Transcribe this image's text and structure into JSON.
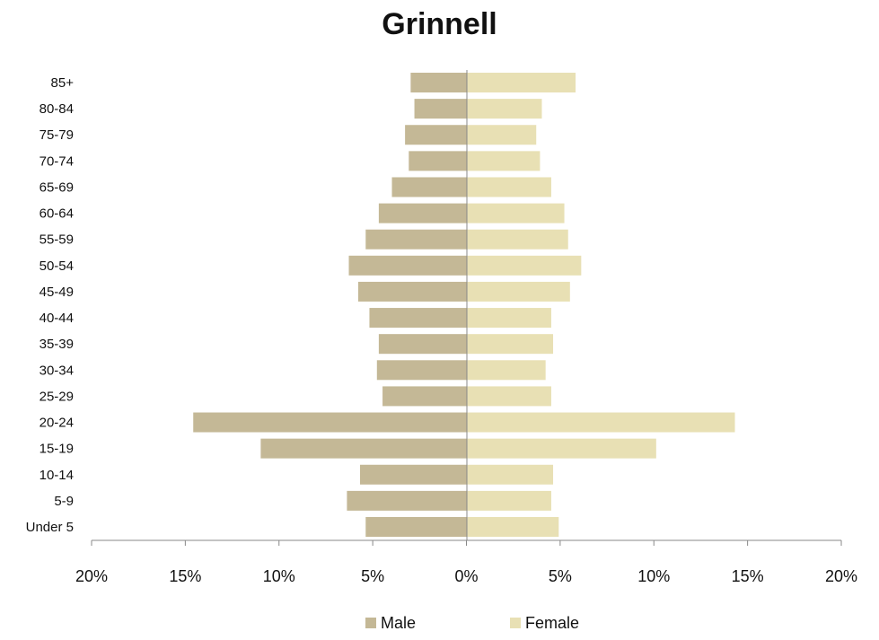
{
  "chart_data": {
    "type": "bar",
    "orientation": "horizontal",
    "title": "Grinnell",
    "categories": [
      "Under 5",
      "5-9",
      "10-14",
      "15-19",
      "20-24",
      "25-29",
      "30-34",
      "35-39",
      "40-44",
      "45-49",
      "50-54",
      "55-59",
      "60-64",
      "65-69",
      "70-74",
      "75-79",
      "80-84",
      "85+"
    ],
    "series": [
      {
        "name": "Male",
        "color": "#c4b896",
        "values": [
          5.4,
          6.4,
          5.7,
          11.0,
          14.6,
          4.5,
          4.8,
          4.7,
          5.2,
          5.8,
          6.3,
          5.4,
          4.7,
          4.0,
          3.1,
          3.3,
          2.8,
          3.0
        ]
      },
      {
        "name": "Female",
        "color": "#e8e0b4",
        "values": [
          4.9,
          4.5,
          4.6,
          10.1,
          14.3,
          4.5,
          4.2,
          4.6,
          4.5,
          5.5,
          6.1,
          5.4,
          5.2,
          4.5,
          3.9,
          3.7,
          4.0,
          5.8
        ]
      }
    ],
    "x_ticks": [
      "20%",
      "15%",
      "10%",
      "5%",
      "0%",
      "5%",
      "10%",
      "15%",
      "20%"
    ],
    "xlim": [
      -20,
      20
    ],
    "legend": "bottom-center"
  }
}
